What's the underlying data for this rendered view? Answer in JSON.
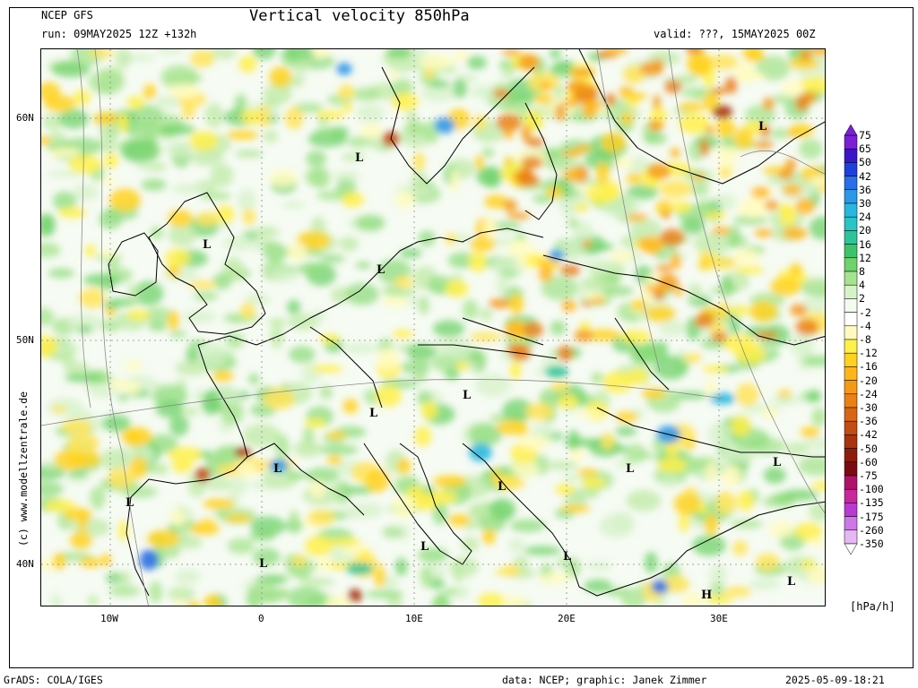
{
  "header": {
    "model": "NCEP GFS",
    "run": "run: 09MAY2025 12Z +132h",
    "title": "Vertical velocity 850hPa",
    "valid": "valid: ???, 15MAY2025 00Z"
  },
  "map": {
    "lat_labels": [
      "60N",
      "50N",
      "40N"
    ],
    "lon_labels": [
      "10W",
      "0",
      "10E",
      "20E",
      "30E"
    ],
    "pressure_labels": [
      {
        "text": "L"
      },
      {
        "text": "L"
      },
      {
        "text": "L"
      },
      {
        "text": "L"
      },
      {
        "text": "L"
      },
      {
        "text": "L"
      },
      {
        "text": "L"
      },
      {
        "text": "L"
      },
      {
        "text": "L"
      },
      {
        "text": "L"
      },
      {
        "text": "L"
      },
      {
        "text": "L"
      },
      {
        "text": "L"
      },
      {
        "text": "L"
      },
      {
        "text": "L"
      },
      {
        "text": "H"
      }
    ],
    "colors": {
      "land_outline": "#000000",
      "isobar": "#8a8a8a",
      "grid": "#8a8a8a"
    }
  },
  "legend": {
    "unit": "[hPa/h]",
    "labels": [
      "75",
      "65",
      "50",
      "42",
      "36",
      "30",
      "24",
      "20",
      "16",
      "12",
      "8",
      "4",
      "2",
      "-2",
      "-4",
      "-8",
      "-12",
      "-16",
      "-20",
      "-24",
      "-30",
      "-36",
      "-42",
      "-50",
      "-60",
      "-75",
      "-100",
      "-135",
      "-175",
      "-260",
      "-350"
    ],
    "colors": [
      "#7b1fd6",
      "#3a16c9",
      "#1f3ee0",
      "#2a6ee8",
      "#2b98e8",
      "#27b7e0",
      "#29c4c4",
      "#2ec49a",
      "#3dc46a",
      "#6fd26a",
      "#a6e38e",
      "#d6f2c8",
      "#f2fbee",
      "#ffffff",
      "#fffbc0",
      "#fff04a",
      "#ffd21f",
      "#ffb51a",
      "#f59a18",
      "#ea8016",
      "#d86414",
      "#c24c12",
      "#a83410",
      "#8e1c0e",
      "#7a0a12",
      "#b0126a",
      "#c8289a",
      "#b83ad0",
      "#cc78e6",
      "#e6b8f2"
    ]
  },
  "footer": {
    "left": "GrADS: COLA/IGES",
    "center": "data: NCEP; graphic: Janek Zimmer",
    "right": "2025-05-09-18:21"
  },
  "side_credit": "(c) www.modellzentrale.de"
}
